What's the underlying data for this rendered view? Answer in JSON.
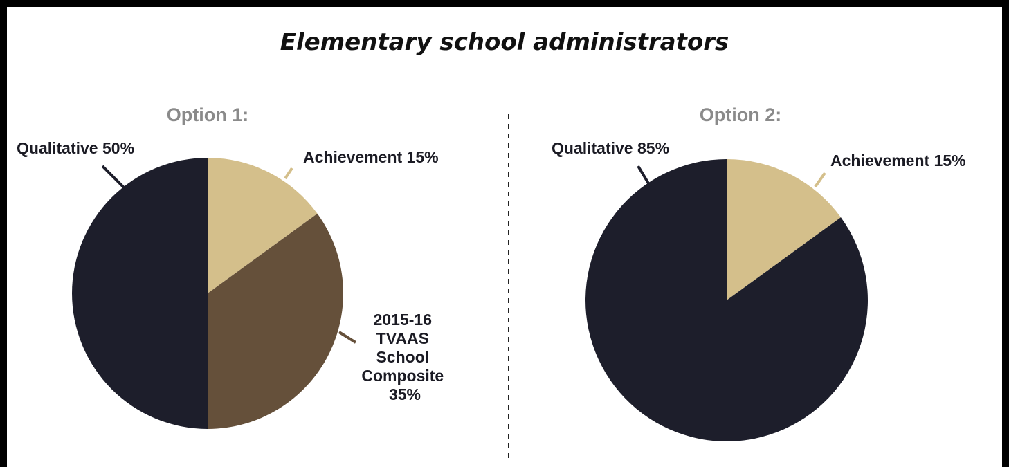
{
  "title": "Elementary school administrators",
  "colors": {
    "qualitative": "#1d1e2b",
    "achievement": "#d4bf8b",
    "tvaas": "#65503a",
    "frame": "#000000"
  },
  "chart_data": [
    {
      "type": "pie",
      "title": "Option 1:",
      "slices": [
        {
          "label": "Achievement 15%",
          "value": 15,
          "color": "#d4bf8b"
        },
        {
          "label_lines": [
            "2015-16",
            "TVAAS",
            "School",
            "Composite",
            "35%"
          ],
          "value": 35,
          "color": "#65503a"
        },
        {
          "label": "Qualitative 50%",
          "value": 50,
          "color": "#1d1e2b"
        }
      ]
    },
    {
      "type": "pie",
      "title": "Option 2:",
      "slices": [
        {
          "label": "Achievement 15%",
          "value": 15,
          "color": "#d4bf8b"
        },
        {
          "label": "Qualitative 85%",
          "value": 85,
          "color": "#1d1e2b"
        }
      ]
    }
  ]
}
